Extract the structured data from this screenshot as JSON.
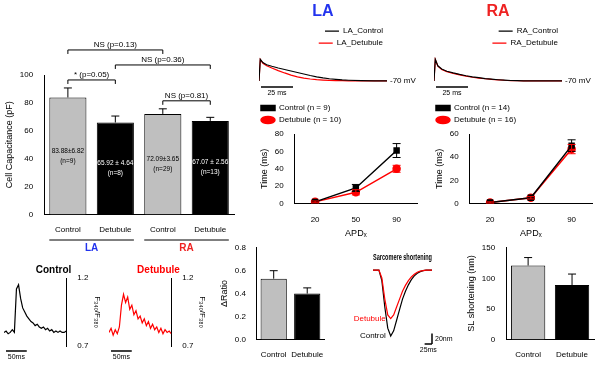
{
  "chart_data": [
    {
      "type": "bar",
      "categories": [
        "Control",
        "Detubule",
        "Control",
        "Detubule"
      ],
      "groups": [
        {
          "label": "LA",
          "from": 0,
          "to": 1
        },
        {
          "label": "RA",
          "from": 2,
          "to": 3
        }
      ],
      "values": [
        83.88,
        65.92,
        72.09,
        67.07
      ],
      "errors": [
        6.82,
        4.64,
        3.65,
        2.56
      ],
      "data_labels": true,
      "value_labels": [
        "83.88±6.82",
        "65.92 ± 4.64",
        "72.09±3.65",
        "67.07 ± 2.56"
      ],
      "n_labels": [
        "(n=9)",
        "(n=8)",
        "(n=29)",
        "(n=13)"
      ],
      "colors": [
        "#bfbfbf",
        "#000000",
        "#bfbfbf",
        "#000000"
      ],
      "ylabel": "Cell Capacitance (pF)",
      "ylim": [
        0,
        100
      ],
      "yticks": [
        0,
        20,
        40,
        60,
        80,
        100
      ],
      "grid": false,
      "annotations": [
        {
          "text": "* (p=0.05)",
          "from": 0,
          "to": 1
        },
        {
          "text": "NS (p=0.81)",
          "from": 2,
          "to": 3
        },
        {
          "text": "NS (p=0.36)",
          "from": 1,
          "to": 3
        },
        {
          "text": "NS (p=0.13)",
          "from": 0,
          "to": 2
        }
      ]
    },
    {
      "type": "line",
      "title": "LA",
      "x": [
        0,
        1,
        3,
        6,
        10,
        15,
        20,
        25,
        30,
        35,
        40,
        45,
        50,
        55,
        60,
        65,
        70,
        80,
        90,
        100
      ],
      "series": [
        {
          "name": "LA_Control",
          "color": "#000000",
          "values": [
            -70,
            30,
            15,
            5,
            -2,
            -10,
            -17,
            -24,
            -31,
            -38,
            -45,
            -51,
            -56,
            -60,
            -63,
            -65.5,
            -67,
            -69,
            -70,
            -70
          ]
        },
        {
          "name": "LA_Detubule",
          "color": "#ff0000",
          "values": [
            -70,
            30,
            12,
            0,
            -10,
            -22,
            -33,
            -43,
            -51,
            -57,
            -61,
            -64,
            -66,
            -67.5,
            -68.5,
            -69,
            -69.5,
            -70,
            -70,
            -70
          ]
        }
      ],
      "xlim": [
        0,
        100
      ],
      "ylim": [
        -75,
        40
      ],
      "tick_labels": false,
      "legend": "upper right",
      "scale_bars": [
        {
          "axis": "x",
          "value": 25,
          "label": "25 ms"
        }
      ],
      "annotations": [
        {
          "y": -70,
          "text": "-70 mV"
        }
      ]
    },
    {
      "type": "line",
      "categories": [
        "20",
        "50",
        "90"
      ],
      "xlabel": "APDₓ",
      "ylabel": "Time (ms)",
      "ylim": [
        0,
        80
      ],
      "yticks": [
        0,
        20,
        40,
        60,
        80
      ],
      "grid": false,
      "legend": "upper left",
      "series": [
        {
          "name": "Control (n = 9)",
          "color": "#000000",
          "marker": "square",
          "values": [
            2,
            18,
            61
          ],
          "errors": [
            1,
            4,
            8
          ]
        },
        {
          "name": "Detubule (n = 10)",
          "color": "#ff0000",
          "marker": "circle",
          "values": [
            2,
            13,
            40
          ],
          "errors": [
            1,
            3,
            4
          ]
        }
      ]
    },
    {
      "type": "line",
      "title": "RA",
      "x": [
        0,
        1,
        3,
        6,
        10,
        15,
        20,
        25,
        30,
        35,
        40,
        45,
        50,
        55,
        60,
        65,
        70,
        80,
        90,
        100
      ],
      "series": [
        {
          "name": "RA_Control",
          "color": "#000000",
          "values": [
            -70,
            30,
            0,
            -15,
            -25,
            -33,
            -40,
            -46,
            -51,
            -55,
            -59,
            -62,
            -64.5,
            -66.5,
            -68,
            -69,
            -69.5,
            -70,
            -70,
            -70
          ]
        },
        {
          "name": "RA_Detubule",
          "color": "#ff0000",
          "values": [
            -70,
            30,
            -2,
            -17,
            -27,
            -35,
            -42,
            -48,
            -53,
            -57,
            -60,
            -63,
            -65,
            -67,
            -68.3,
            -69.2,
            -69.6,
            -70,
            -70,
            -70
          ]
        }
      ],
      "xlim": [
        0,
        100
      ],
      "ylim": [
        -75,
        40
      ],
      "tick_labels": false,
      "legend": "upper right",
      "scale_bars": [
        {
          "axis": "x",
          "value": 25,
          "label": "25 ms"
        }
      ],
      "annotations": [
        {
          "y": -70,
          "text": "-70 mV"
        }
      ]
    },
    {
      "type": "line",
      "categories": [
        "20",
        "50",
        "90"
      ],
      "xlabel": "APDₓ",
      "ylabel": "Time (ms)",
      "ylim": [
        0,
        60
      ],
      "yticks": [
        0,
        20,
        40,
        60
      ],
      "grid": false,
      "legend": "upper left",
      "series": [
        {
          "name": "Control (n = 14)",
          "color": "#000000",
          "marker": "square",
          "values": [
            1,
            5,
            50
          ],
          "errors": [
            0.5,
            1,
            5
          ]
        },
        {
          "name": "Detubule (n = 16)",
          "color": "#ff0000",
          "marker": "circle",
          "values": [
            1,
            5,
            47
          ],
          "errors": [
            0.5,
            1,
            4
          ]
        }
      ]
    },
    {
      "type": "line",
      "title": "Control",
      "x": [
        0,
        5,
        10,
        15,
        20,
        25,
        30,
        35,
        40,
        45,
        50,
        55,
        60,
        65,
        70,
        75,
        80,
        85,
        90,
        95,
        100,
        105,
        110,
        115,
        120,
        125,
        130,
        135,
        140,
        145,
        150
      ],
      "series": [
        {
          "color": "#000000",
          "axis": "y2",
          "values": [
            0.8,
            0.81,
            0.79,
            0.8,
            0.82,
            0.8,
            1.12,
            1.15,
            1.05,
            0.98,
            0.95,
            0.92,
            0.9,
            0.88,
            0.87,
            0.85,
            0.86,
            0.84,
            0.83,
            0.84,
            0.82,
            0.83,
            0.81,
            0.82,
            0.8,
            0.81,
            0.8,
            0.81,
            0.8,
            0.8,
            0.81
          ]
        }
      ],
      "xlim": [
        0,
        150
      ],
      "y2lim": [
        0.7,
        1.2
      ],
      "y2ticks": [
        0.7,
        1.2
      ],
      "y2label": "F₃₄₀/F₃₈₀",
      "grid": false,
      "tick_labels": "y",
      "scale_bars": [
        {
          "axis": "x",
          "value": 50,
          "label": "50ms"
        }
      ]
    },
    {
      "type": "line",
      "title": "Detubule",
      "x": [
        0,
        5,
        10,
        15,
        20,
        25,
        30,
        35,
        40,
        45,
        50,
        55,
        60,
        65,
        70,
        75,
        80,
        85,
        90,
        95,
        100,
        105,
        110,
        115,
        120,
        125,
        130,
        135,
        140,
        145,
        150
      ],
      "series": [
        {
          "color": "#ff0000",
          "axis": "y2",
          "values": [
            0.8,
            0.83,
            0.78,
            0.82,
            0.79,
            0.84,
            1.0,
            1.08,
            1.02,
            1.06,
            0.97,
            1.0,
            0.93,
            0.96,
            0.9,
            0.92,
            0.87,
            0.9,
            0.85,
            0.88,
            0.83,
            0.86,
            0.82,
            0.84,
            0.8,
            0.83,
            0.79,
            0.82,
            0.8,
            0.81,
            0.79
          ]
        }
      ],
      "xlim": [
        0,
        150
      ],
      "y2lim": [
        0.7,
        1.2
      ],
      "y2ticks": [
        0.7,
        1.2
      ],
      "y2label": "F₃₄₀/F₃₈₀",
      "grid": false,
      "tick_labels": "y",
      "scale_bars": [
        {
          "axis": "x",
          "value": 50,
          "label": "50ms"
        }
      ]
    },
    {
      "type": "bar",
      "categories": [
        "Control",
        "Detubule"
      ],
      "values": [
        0.53,
        0.4
      ],
      "errors": [
        0.07,
        0.05
      ],
      "colors": [
        "#bfbfbf",
        "#000000"
      ],
      "ylabel": "ΔRatio",
      "ylim": [
        0,
        0.8
      ],
      "yticks": [
        {
          "value": 0,
          "label": "0.0"
        },
        0.2,
        0.4,
        0.6,
        0.8
      ],
      "grid": false
    },
    {
      "type": "line",
      "title": "Sarcomere shortening",
      "x": [
        0,
        10,
        20,
        30,
        40,
        50,
        60,
        70,
        80,
        90,
        100,
        110,
        120,
        130,
        140,
        150,
        160,
        170,
        180,
        190,
        200
      ],
      "series": [
        {
          "name": "Detubule",
          "color": "#ff0000",
          "values": [
            0,
            0,
            0,
            -15,
            -55,
            -85,
            -92,
            -85,
            -70,
            -55,
            -40,
            -29,
            -20,
            -13,
            -8,
            -4,
            -2,
            -1,
            0,
            0,
            0
          ]
        },
        {
          "name": "Control",
          "color": "#000000",
          "values": [
            0,
            0,
            0,
            -20,
            -70,
            -110,
            -125,
            -115,
            -95,
            -75,
            -55,
            -40,
            -28,
            -18,
            -11,
            -6,
            -3,
            -1,
            0,
            0,
            0
          ]
        }
      ],
      "xlim": [
        0,
        200
      ],
      "ylim": [
        -140,
        10
      ],
      "tick_labels": false,
      "scale_bars": [
        {
          "axis": "y",
          "value": 20,
          "label": "20nm"
        },
        {
          "axis": "x",
          "value": 25,
          "label": "25ms"
        }
      ]
    },
    {
      "type": "bar",
      "categories": [
        "Control",
        "Detubule"
      ],
      "values": [
        121,
        89
      ],
      "errors": [
        13,
        18
      ],
      "colors": [
        "#bfbfbf",
        "#000000"
      ],
      "ylabel": "SL shortening (nm)",
      "ylim": [
        0,
        150
      ],
      "yticks": [
        0,
        50,
        100,
        150
      ],
      "grid": false
    }
  ]
}
